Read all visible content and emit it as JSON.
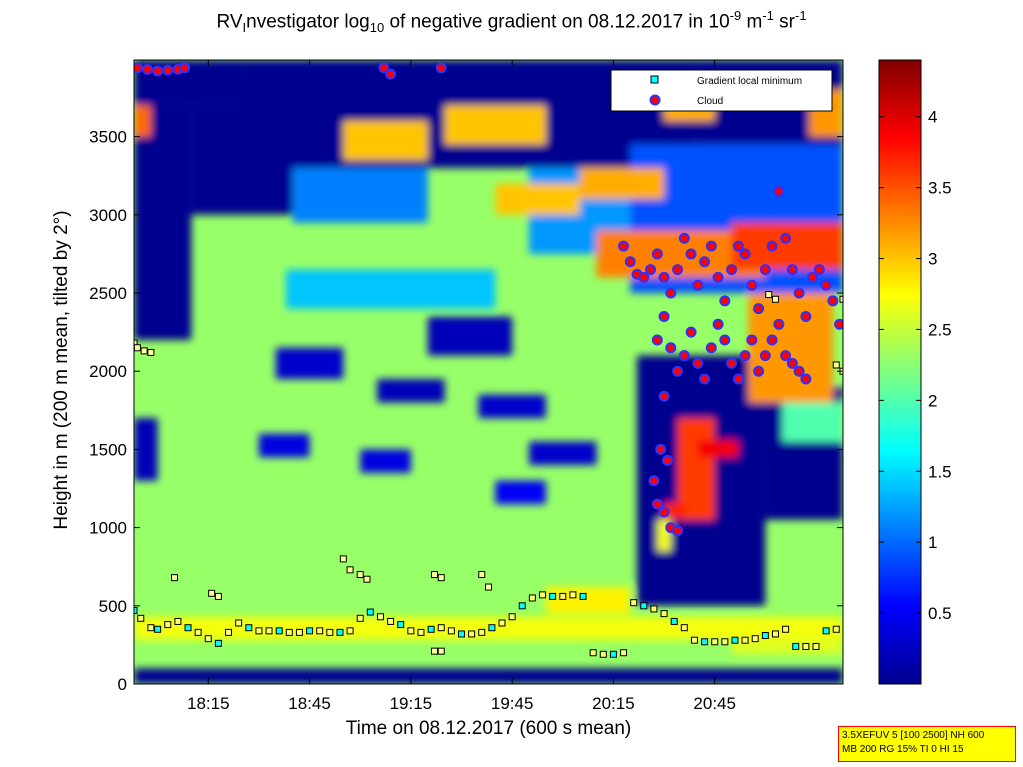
{
  "chart_data": {
    "type": "heatmap",
    "title_parts": {
      "pre": "RV",
      "sub1": "I",
      "mid1": "nvestigator log",
      "sub2": "10",
      "mid2": " of negative gradient on 08.12.2017 in 10",
      "sup1": "-9",
      "mid3": " m",
      "sup2": "-1",
      "mid4": " sr",
      "sup3": "-1"
    },
    "xlabel": "Time on 08.12.2017 (600 s mean)",
    "ylabel": "Height in m (200 m mean, tilted by 2°)",
    "x_ticks": [
      "18:15",
      "18:45",
      "19:15",
      "19:45",
      "20:15",
      "20:45"
    ],
    "x_range": [
      "17:53",
      "21:23"
    ],
    "y_ticks": [
      0,
      500,
      1000,
      1500,
      2000,
      2500,
      3000,
      3500
    ],
    "ylim": [
      0,
      3990
    ],
    "colorbar": {
      "ticks": [
        0.5,
        1,
        1.5,
        2,
        2.5,
        3,
        3.5,
        4
      ],
      "range": [
        0,
        4.4
      ],
      "colormap": "jet"
    },
    "legend": {
      "placement": "top-right",
      "entries": [
        {
          "label": "Gradient local minimum",
          "marker": "square",
          "color": "#00ffff"
        },
        {
          "label": "Cloud",
          "marker": "circle",
          "color": "#ff0000"
        }
      ]
    },
    "background_level": 2.3,
    "regions": [
      {
        "t0": "17:53",
        "t1": "18:25",
        "h0": 3700,
        "h1": 3990,
        "v": 0
      },
      {
        "t0": "18:25",
        "t1": "19:30",
        "h0": 3300,
        "h1": 3990,
        "v": 0
      },
      {
        "t0": "17:53",
        "t1": "18:10",
        "h0": 2200,
        "h1": 3700,
        "v": 0
      },
      {
        "t0": "18:10",
        "t1": "18:40",
        "h0": 3000,
        "h1": 3700,
        "v": 0
      },
      {
        "t0": "19:30",
        "t1": "20:40",
        "h0": 3300,
        "h1": 3990,
        "v": 0
      },
      {
        "t0": "20:40",
        "t1": "21:23",
        "h0": 3450,
        "h1": 3990,
        "v": 0
      },
      {
        "t0": "18:40",
        "t1": "19:20",
        "h0": 2950,
        "h1": 3300,
        "v": 1.1
      },
      {
        "t0": "19:50",
        "t1": "20:20",
        "h0": 2750,
        "h1": 3300,
        "v": 1.2
      },
      {
        "t0": "20:20",
        "t1": "21:23",
        "h0": 2500,
        "h1": 3450,
        "v": 0.9
      },
      {
        "t0": "18:55",
        "t1": "19:20",
        "h0": 3350,
        "h1": 3600,
        "v": 3.0
      },
      {
        "t0": "19:25",
        "t1": "19:55",
        "h0": 3450,
        "h1": 3700,
        "v": 3.0
      },
      {
        "t0": "20:30",
        "t1": "20:45",
        "h0": 3600,
        "h1": 3750,
        "v": 3.1
      },
      {
        "t0": "21:13",
        "t1": "21:23",
        "h0": 3500,
        "h1": 3800,
        "v": 3.2
      },
      {
        "t0": "19:40",
        "t1": "20:05",
        "h0": 3000,
        "h1": 3200,
        "v": 3.0
      },
      {
        "t0": "20:05",
        "t1": "20:30",
        "h0": 3100,
        "h1": 3300,
        "v": 3.1
      },
      {
        "t0": "20:10",
        "t1": "21:00",
        "h0": 2600,
        "h1": 2900,
        "v": 3.3
      },
      {
        "t0": "20:50",
        "t1": "21:23",
        "h0": 2650,
        "h1": 2950,
        "v": 3.6
      },
      {
        "t0": "17:53",
        "t1": "17:58",
        "h0": 3500,
        "h1": 3700,
        "v": 3.4
      },
      {
        "t0": "18:38",
        "t1": "19:40",
        "h0": 2400,
        "h1": 2650,
        "v": 1.4
      },
      {
        "t0": "19:20",
        "t1": "19:45",
        "h0": 2100,
        "h1": 2350,
        "v": 0.2
      },
      {
        "t0": "18:35",
        "t1": "18:55",
        "h0": 1950,
        "h1": 2150,
        "v": 0.3
      },
      {
        "t0": "19:05",
        "t1": "19:25",
        "h0": 1800,
        "h1": 1950,
        "v": 0.2
      },
      {
        "t0": "19:35",
        "t1": "19:55",
        "h0": 1700,
        "h1": 1850,
        "v": 0.3
      },
      {
        "t0": "17:53",
        "t1": "18:00",
        "h0": 1300,
        "h1": 1700,
        "v": 0.2
      },
      {
        "t0": "18:30",
        "t1": "18:45",
        "h0": 1450,
        "h1": 1600,
        "v": 0.4
      },
      {
        "t0": "19:00",
        "t1": "19:15",
        "h0": 1350,
        "h1": 1500,
        "v": 0.4
      },
      {
        "t0": "19:50",
        "t1": "20:10",
        "h0": 1400,
        "h1": 1550,
        "v": 0.3
      },
      {
        "t0": "19:40",
        "t1": "19:55",
        "h0": 1150,
        "h1": 1300,
        "v": 0.5
      },
      {
        "t0": "20:22",
        "t1": "21:00",
        "h0": 500,
        "h1": 2100,
        "v": 0
      },
      {
        "t0": "21:00",
        "t1": "21:23",
        "h0": 1050,
        "h1": 1900,
        "v": 0
      },
      {
        "t0": "20:34",
        "t1": "20:45",
        "h0": 1050,
        "h1": 1700,
        "v": 3.6
      },
      {
        "t0": "20:40",
        "t1": "20:52",
        "h0": 1450,
        "h1": 1560,
        "v": 3.9
      },
      {
        "t0": "20:30",
        "t1": "20:36",
        "h0": 1060,
        "h1": 1160,
        "v": 3.7
      },
      {
        "t0": "20:28",
        "t1": "20:32",
        "h0": 850,
        "h1": 1050,
        "v": 2.7
      },
      {
        "t0": "20:55",
        "t1": "21:20",
        "h0": 1800,
        "h1": 2500,
        "v": 3.2
      },
      {
        "t0": "21:05",
        "t1": "21:23",
        "h0": 1550,
        "h1": 1800,
        "v": 2.0
      },
      {
        "t0": "17:53",
        "t1": "21:23",
        "h0": 280,
        "h1": 430,
        "v": 2.7
      },
      {
        "t0": "19:55",
        "t1": "20:20",
        "h0": 450,
        "h1": 620,
        "v": 2.8
      },
      {
        "t0": "20:50",
        "t1": "21:23",
        "h0": 190,
        "h1": 280,
        "v": 2.6
      },
      {
        "t0": "17:53",
        "t1": "21:23",
        "h0": 0,
        "h1": 100,
        "v": 0
      }
    ],
    "series": [
      {
        "name": "Gradient local minimum",
        "x": [
          "17:53",
          "17:55",
          "17:58",
          "18:00",
          "18:03",
          "18:06",
          "18:09",
          "18:12",
          "18:15",
          "18:18",
          "18:21",
          "18:24",
          "18:27",
          "18:30",
          "18:33",
          "18:36",
          "18:39",
          "18:42",
          "18:45",
          "18:48",
          "18:51",
          "18:54",
          "18:57",
          "19:00",
          "19:03",
          "19:06",
          "19:09",
          "19:12",
          "19:15",
          "19:18",
          "19:21",
          "19:24",
          "19:27",
          "19:30",
          "19:33",
          "19:36",
          "19:39",
          "19:42",
          "19:45",
          "19:48",
          "19:51",
          "19:54",
          "19:57",
          "20:00",
          "20:03",
          "20:06",
          "20:09",
          "20:12",
          "20:15",
          "20:18",
          "20:21",
          "20:24",
          "20:27",
          "20:30",
          "20:33",
          "20:36",
          "20:39",
          "20:42",
          "20:45",
          "20:48",
          "20:51",
          "20:54",
          "20:57",
          "21:00",
          "21:03",
          "21:06",
          "21:09",
          "21:12",
          "21:15",
          "21:18",
          "21:21"
        ],
        "y": [
          470,
          420,
          360,
          350,
          380,
          400,
          360,
          330,
          290,
          260,
          330,
          390,
          360,
          340,
          340,
          340,
          330,
          330,
          340,
          340,
          330,
          330,
          340,
          420,
          460,
          430,
          400,
          380,
          340,
          330,
          350,
          360,
          340,
          320,
          320,
          330,
          360,
          390,
          430,
          500,
          550,
          570,
          560,
          560,
          570,
          560,
          200,
          190,
          190,
          200,
          520,
          500,
          480,
          450,
          400,
          360,
          280,
          270,
          270,
          270,
          280,
          280,
          290,
          310,
          320,
          350,
          240,
          240,
          240,
          340,
          350
        ]
      },
      {
        "name": "Gradient local minimum (upper)",
        "x": [
          "17:53",
          "17:54",
          "17:56",
          "17:58",
          "18:05",
          "18:16",
          "18:18",
          "18:55",
          "18:57",
          "19:00",
          "19:02",
          "19:22",
          "19:24",
          "19:36",
          "19:38",
          "19:22",
          "19:24",
          "21:01",
          "21:03",
          "21:21",
          "21:23",
          "21:23"
        ],
        "y": [
          2180,
          2150,
          2130,
          2120,
          680,
          580,
          560,
          800,
          730,
          700,
          670,
          700,
          680,
          700,
          620,
          210,
          210,
          2490,
          2460,
          2040,
          2000,
          2460
        ]
      },
      {
        "name": "Cloud",
        "x": [
          "17:54",
          "17:57",
          "18:00",
          "18:03",
          "18:06",
          "18:08",
          "19:07",
          "19:09",
          "19:24",
          "20:18",
          "20:20",
          "20:22",
          "20:24",
          "20:26",
          "20:28",
          "20:30",
          "20:32",
          "20:34",
          "20:36",
          "20:38",
          "20:40",
          "20:42",
          "20:44",
          "20:46",
          "20:48",
          "20:50",
          "20:52",
          "20:54",
          "20:56",
          "20:58",
          "21:00",
          "21:02",
          "21:04",
          "21:06",
          "21:08",
          "21:10",
          "21:12",
          "21:14",
          "21:16",
          "21:18",
          "21:20",
          "21:22",
          "20:28",
          "20:30",
          "20:32",
          "20:34",
          "20:36",
          "20:38",
          "20:40",
          "20:42",
          "20:44",
          "20:46",
          "20:48",
          "20:50",
          "20:52",
          "20:54",
          "20:56",
          "20:58",
          "21:00",
          "21:02",
          "21:04",
          "21:06",
          "21:08",
          "21:10",
          "21:12",
          "20:30",
          "20:29",
          "20:31",
          "20:27",
          "20:28",
          "20:30",
          "20:32",
          "20:34"
        ],
        "y": [
          3940,
          3930,
          3920,
          3925,
          3930,
          3940,
          3940,
          3900,
          3940,
          2800,
          2700,
          2620,
          2600,
          2650,
          2750,
          2600,
          2500,
          2650,
          2850,
          2750,
          2550,
          2700,
          2800,
          2600,
          2450,
          2650,
          2800,
          2750,
          2550,
          2400,
          2650,
          2800,
          3150,
          2850,
          2650,
          2500,
          2350,
          2600,
          2650,
          2550,
          2450,
          2300,
          2200,
          2350,
          2150,
          2000,
          2100,
          2250,
          2050,
          1950,
          2150,
          2300,
          2200,
          2050,
          1950,
          2100,
          2200,
          2000,
          2100,
          2200,
          2300,
          2100,
          2050,
          2000,
          1950,
          1840,
          1500,
          1430,
          1300,
          1150,
          1100,
          1000,
          980
        ]
      }
    ]
  },
  "settings_box": {
    "line1": "3.5XEFUV 5 [100 2500] NH 600",
    "line2": "MB 200 RG 15% TI 0 HI 15"
  }
}
